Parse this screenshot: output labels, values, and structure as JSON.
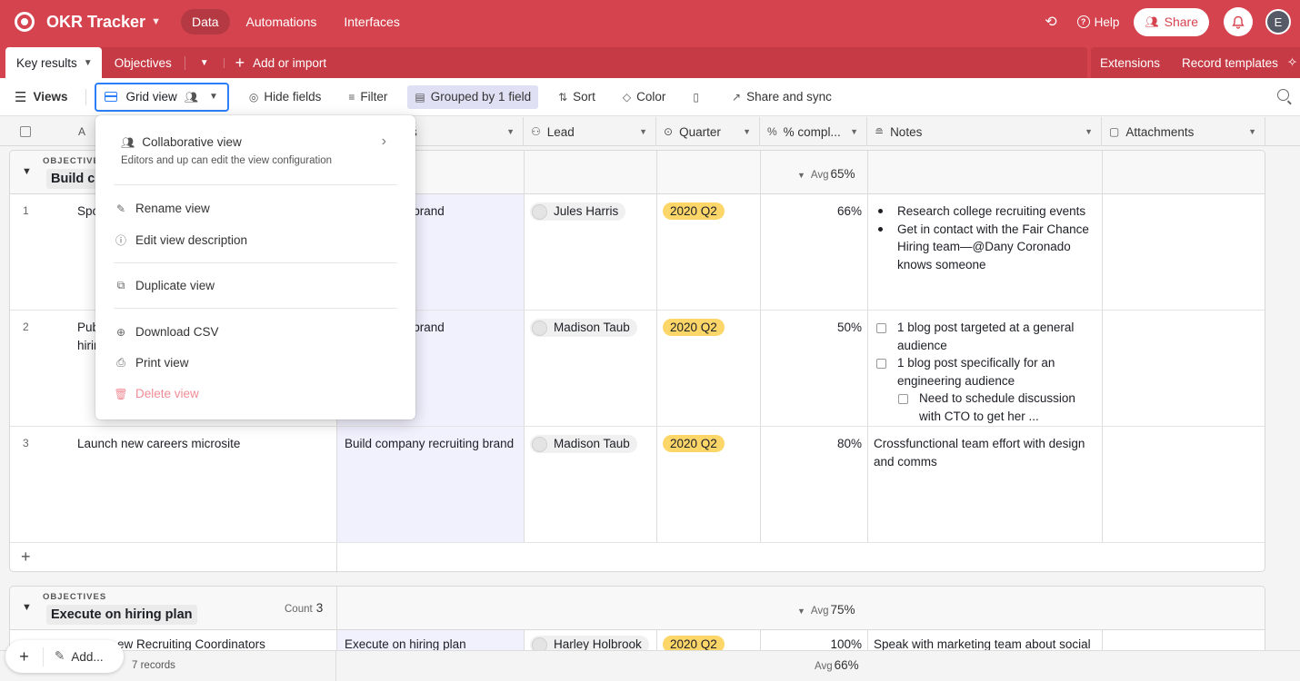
{
  "app": {
    "title": "OKR Tracker",
    "nav": [
      "Data",
      "Automations",
      "Interfaces"
    ],
    "help": "Help",
    "share": "Share",
    "user_initial": "E"
  },
  "tabs": {
    "active": "Key results",
    "other": "Objectives",
    "add": "Add or import",
    "extensions": "Extensions",
    "record_templates": "Record templates"
  },
  "toolbar": {
    "views": "Views",
    "view_name": "Grid view",
    "hide_fields": "Hide fields",
    "filter": "Filter",
    "grouped": "Grouped by 1 field",
    "sort": "Sort",
    "color": "Color",
    "share_sync": "Share and sync"
  },
  "columns": [
    {
      "label": "s"
    },
    {
      "label": "Lead"
    },
    {
      "label": "Quarter"
    },
    {
      "label": "% compl..."
    },
    {
      "label": "Notes"
    },
    {
      "label": "Attachments"
    }
  ],
  "menu": {
    "collab_title": "Collaborative view",
    "collab_desc": "Editors and up can edit the view configuration",
    "rename": "Rename view",
    "edit_desc": "Edit view description",
    "duplicate": "Duplicate view",
    "download": "Download CSV",
    "print": "Print view",
    "delete": "Delete view"
  },
  "group1": {
    "label": "OBJECTIVES",
    "name": "Build co",
    "avg_label": "Avg",
    "avg": "65%",
    "rows": [
      {
        "num": "1",
        "name": "Spo",
        "objective": "ny recruiting brand",
        "lead": "Jules Harris",
        "quarter": "2020 Q2",
        "pct": "66%",
        "notes_bullets": [
          "Research college recruiting events",
          "Get in contact with the Fair Chance Hiring team—@Dany Coronado knows someone"
        ]
      },
      {
        "num": "2",
        "name": "Pub",
        "name2": "hirir",
        "objective": "ny recruiting brand",
        "lead": "Madison Taub",
        "quarter": "2020 Q2",
        "pct": "50%",
        "notes_checks": [
          "1 blog post targeted at a general audience",
          "1 blog post specifically for an engineering audience"
        ],
        "notes_sub": "Need to schedule discussion with CTO to get her ..."
      },
      {
        "num": "3",
        "name": "Launch new careers microsite",
        "objective": "Build company recruiting brand",
        "lead": "Madison Taub",
        "quarter": "2020 Q2",
        "pct": "80%",
        "notes_text": "Crossfunctional team effort with design and comms"
      }
    ]
  },
  "group2": {
    "label": "OBJECTIVES",
    "name": "Execute on hiring plan",
    "count_label": "Count",
    "count": "3",
    "avg_label": "Avg",
    "avg": "75%",
    "row": {
      "name": "ew Recruiting Coordinators",
      "objective": "Execute on hiring plan",
      "lead": "Harley Holbrook",
      "quarter": "2020 Q2",
      "pct": "100%",
      "notes_text": "Speak with marketing team about social"
    }
  },
  "footer": {
    "add_label": "Add...",
    "records": "7 records",
    "avg_label": "Avg",
    "avg": "66%"
  },
  "colors": {
    "brand": "#d5434e",
    "focus": "#2d7ff9",
    "quarter_pill": "#fcd669",
    "objective_cell": "#f1f0fd"
  }
}
